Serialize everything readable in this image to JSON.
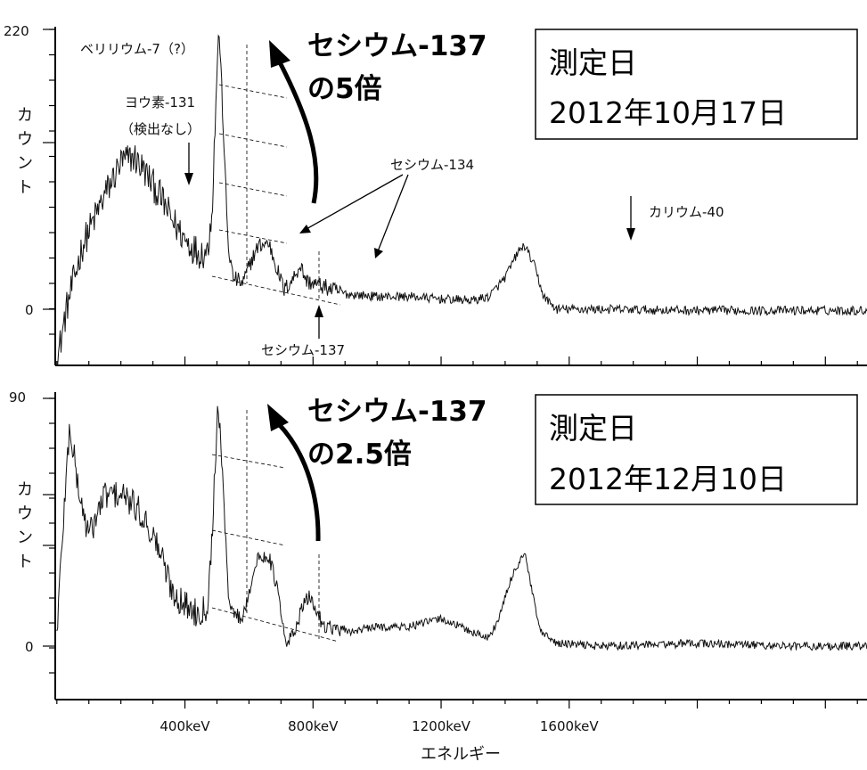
{
  "chart_data": [
    {
      "type": "line",
      "panel": "top",
      "ylabel": "カウント",
      "ytick_labels": [
        "220",
        "0"
      ],
      "ylim": [
        -42,
        220
      ],
      "xlim": [
        -5,
        2530
      ],
      "box": {
        "line1": "測定日",
        "line2": "2012年10月17日"
      },
      "big_annotation": {
        "line1": "セシウム-137",
        "line2": "の5倍"
      },
      "annotations": {
        "be7": "ベリリウム-7（?）",
        "i131_a": "ヨウ素-131",
        "i131_b": "（検出なし）",
        "cs134": "セシウム-134",
        "k40": "カリウム-40",
        "cs137": "セシウム-137"
      },
      "key_points": [
        [
          0,
          -42
        ],
        [
          30,
          0
        ],
        [
          80,
          50
        ],
        [
          150,
          90
        ],
        [
          200,
          115
        ],
        [
          240,
          120
        ],
        [
          270,
          110
        ],
        [
          320,
          90
        ],
        [
          360,
          70
        ],
        [
          400,
          55
        ],
        [
          440,
          45
        ],
        [
          470,
          45
        ],
        [
          485,
          80
        ],
        [
          495,
          150
        ],
        [
          500,
          190
        ],
        [
          505,
          215
        ],
        [
          510,
          205
        ],
        [
          520,
          140
        ],
        [
          535,
          50
        ],
        [
          550,
          25
        ],
        [
          580,
          20
        ],
        [
          610,
          40
        ],
        [
          630,
          50
        ],
        [
          662,
          52
        ],
        [
          690,
          30
        ],
        [
          710,
          15
        ],
        [
          740,
          25
        ],
        [
          760,
          35
        ],
        [
          780,
          22
        ],
        [
          830,
          18
        ],
        [
          900,
          12
        ],
        [
          1000,
          10
        ],
        [
          1100,
          10
        ],
        [
          1200,
          8
        ],
        [
          1300,
          7
        ],
        [
          1350,
          10
        ],
        [
          1400,
          25
        ],
        [
          1440,
          45
        ],
        [
          1461,
          50
        ],
        [
          1490,
          35
        ],
        [
          1520,
          10
        ],
        [
          1560,
          0
        ],
        [
          1700,
          0
        ],
        [
          2000,
          -1
        ],
        [
          2300,
          -1
        ],
        [
          2530,
          -1
        ]
      ],
      "noise_amplitude": 6
    },
    {
      "type": "line",
      "panel": "bottom",
      "ylabel": "カウント",
      "ytick_labels": [
        "90",
        "0"
      ],
      "ylim": [
        -15,
        90
      ],
      "xlim": [
        -5,
        2530
      ],
      "box": {
        "line1": "測定日",
        "line2": "2012年12月10日"
      },
      "big_annotation": {
        "line1": "セシウム-137",
        "line2": "の2.5倍"
      },
      "xlabel": "エネルギー",
      "xtick_labels": [
        "400keV",
        "800keV",
        "1200keV",
        "1600keV"
      ],
      "xticks": [
        400,
        800,
        1200,
        1600
      ],
      "key_points": [
        [
          0,
          5
        ],
        [
          20,
          45
        ],
        [
          40,
          80
        ],
        [
          70,
          55
        ],
        [
          100,
          40
        ],
        [
          150,
          55
        ],
        [
          200,
          55
        ],
        [
          250,
          50
        ],
        [
          280,
          45
        ],
        [
          320,
          35
        ],
        [
          360,
          20
        ],
        [
          400,
          15
        ],
        [
          440,
          12
        ],
        [
          470,
          15
        ],
        [
          485,
          40
        ],
        [
          495,
          70
        ],
        [
          502,
          85
        ],
        [
          510,
          80
        ],
        [
          520,
          55
        ],
        [
          535,
          20
        ],
        [
          550,
          12
        ],
        [
          580,
          10
        ],
        [
          610,
          25
        ],
        [
          630,
          32
        ],
        [
          662,
          33
        ],
        [
          690,
          20
        ],
        [
          715,
          0
        ],
        [
          740,
          5
        ],
        [
          770,
          15
        ],
        [
          790,
          18
        ],
        [
          830,
          8
        ],
        [
          900,
          5
        ],
        [
          1000,
          7
        ],
        [
          1100,
          7
        ],
        [
          1200,
          10
        ],
        [
          1300,
          5
        ],
        [
          1350,
          3
        ],
        [
          1380,
          10
        ],
        [
          1420,
          25
        ],
        [
          1450,
          32
        ],
        [
          1461,
          34
        ],
        [
          1480,
          22
        ],
        [
          1510,
          5
        ],
        [
          1560,
          1
        ],
        [
          1700,
          0
        ],
        [
          2000,
          1
        ],
        [
          2300,
          0
        ],
        [
          2530,
          0
        ]
      ],
      "noise_amplitude": 2.5
    }
  ]
}
